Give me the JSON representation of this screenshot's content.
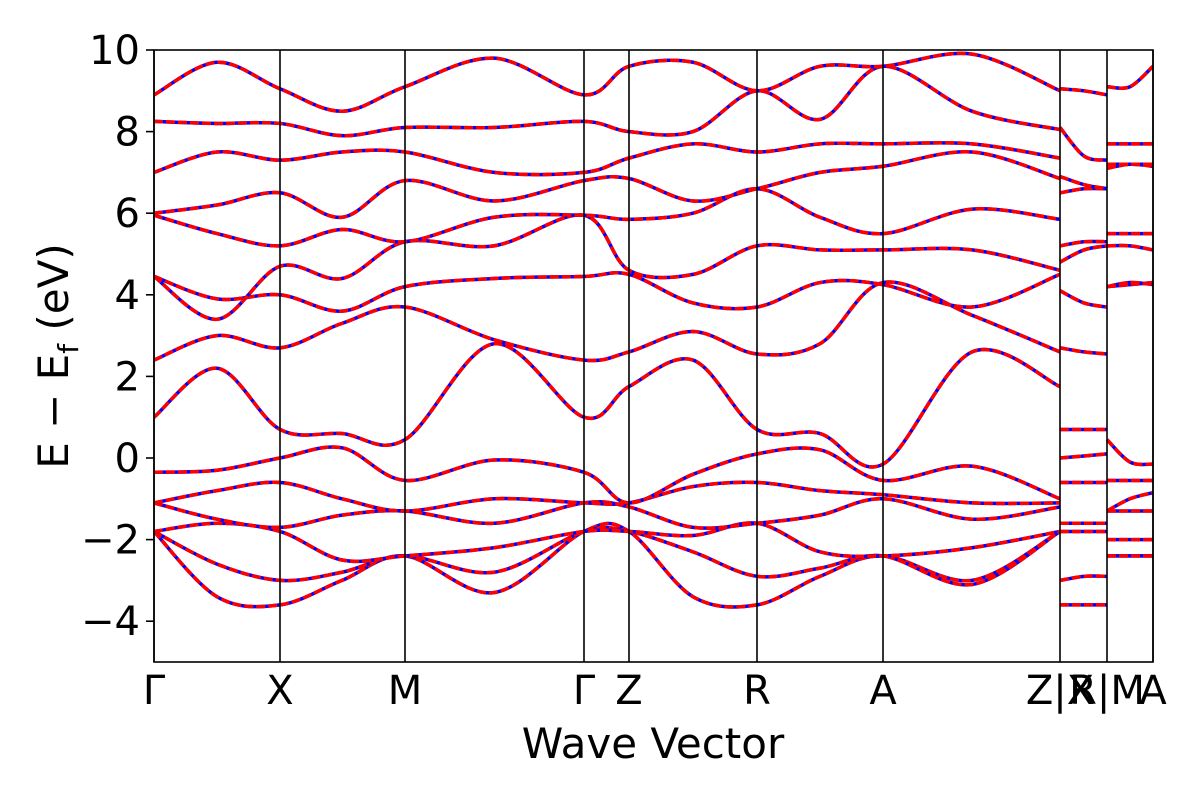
{
  "chart_data": {
    "type": "line",
    "xlabel": "Wave Vector",
    "ylabel": [
      "E − E",
      "f",
      " (eV)"
    ],
    "xlim": [
      0,
      9.99
    ],
    "ylim": [
      -5,
      10
    ],
    "xticks": [
      {
        "value": 0,
        "label": "Γ"
      },
      {
        "value": 1.26,
        "label": "X"
      },
      {
        "value": 2.51,
        "label": "M"
      },
      {
        "value": 4.3,
        "label": "Γ"
      },
      {
        "value": 4.75,
        "label": "Z"
      },
      {
        "value": 6.03,
        "label": "R"
      },
      {
        "value": 7.29,
        "label": "A"
      },
      {
        "value": 9.06,
        "label": "Z|X"
      },
      {
        "value": 9.53,
        "label": "R|M"
      },
      {
        "value": 9.99,
        "label": "A"
      }
    ],
    "yticks": [
      {
        "value": -4,
        "label": "−4"
      },
      {
        "value": -2,
        "label": "−2"
      },
      0,
      2,
      4,
      6,
      8,
      10
    ],
    "line_colors": [
      "#0000ff",
      "#ff0000"
    ],
    "x": [
      0,
      0.63,
      1.26,
      1.88,
      2.51,
      3.4,
      4.3,
      4.75,
      5.39,
      6.03,
      6.66,
      7.29,
      8.18,
      9.06,
      9.06,
      9.06,
      9.3,
      9.53,
      9.53,
      9.53,
      9.76,
      9.99
    ],
    "series": [
      {
        "values": [
          -1.8,
          -3.4,
          -3.6,
          -3.0,
          -2.4,
          -3.3,
          -1.8,
          -1.8,
          -3.4,
          -3.6,
          -2.9,
          -2.4,
          -3.0,
          -1.8,
          null,
          -3.6,
          -3.6,
          -3.6,
          null,
          -2.4,
          -2.4,
          -2.4
        ]
      },
      {
        "values": [
          -1.8,
          -2.6,
          -3.0,
          -2.8,
          -2.4,
          -2.8,
          -1.8,
          -1.8,
          -2.3,
          -2.9,
          -2.7,
          -2.4,
          -3.1,
          -1.8,
          null,
          -3.0,
          -2.9,
          -2.9,
          null,
          -2.4,
          -2.4,
          -2.4
        ]
      },
      {
        "values": [
          -1.8,
          -1.6,
          -1.8,
          -2.5,
          -2.4,
          -2.2,
          -1.8,
          -1.8,
          -1.9,
          -1.6,
          -2.3,
          -2.4,
          -2.2,
          -1.8,
          null,
          -1.8,
          -1.8,
          -1.8,
          null,
          -2.0,
          -2.0,
          -2.0
        ]
      },
      {
        "values": [
          -1.1,
          -1.5,
          -1.7,
          -1.4,
          -1.3,
          -1.6,
          -1.1,
          -1.2,
          -1.7,
          -1.6,
          -1.4,
          -1.0,
          -1.5,
          -1.2,
          null,
          -1.6,
          -1.6,
          -1.6,
          null,
          -1.3,
          -1.3,
          -1.3
        ]
      },
      {
        "values": [
          -1.1,
          -0.8,
          -0.6,
          -1.0,
          -1.3,
          -1.0,
          -1.1,
          -1.1,
          -0.7,
          -0.6,
          -0.8,
          -0.9,
          -1.1,
          -1.1,
          null,
          -0.6,
          -0.6,
          -0.6,
          null,
          -1.3,
          -1.0,
          -0.85
        ]
      },
      {
        "values": [
          -0.35,
          -0.3,
          0.0,
          0.25,
          -0.55,
          -0.05,
          -0.35,
          -1.1,
          -0.4,
          0.1,
          0.2,
          -0.55,
          -0.2,
          -1.0,
          null,
          0.0,
          0.05,
          0.1,
          null,
          -0.55,
          -0.55,
          -0.55
        ]
      },
      {
        "values": [
          1.0,
          2.2,
          0.7,
          0.6,
          0.45,
          2.8,
          1.0,
          1.75,
          2.4,
          0.7,
          0.6,
          -0.15,
          2.6,
          1.75,
          null,
          0.7,
          0.7,
          0.7,
          null,
          0.45,
          -0.1,
          -0.15
        ]
      },
      {
        "values": [
          2.4,
          3.0,
          2.7,
          3.3,
          3.7,
          2.9,
          2.4,
          2.6,
          3.1,
          2.55,
          2.8,
          4.3,
          3.5,
          2.6,
          null,
          2.7,
          2.6,
          2.55,
          null,
          4.2,
          4.25,
          4.3
        ]
      },
      {
        "values": [
          4.45,
          3.9,
          4.0,
          3.6,
          4.2,
          4.4,
          4.45,
          4.5,
          3.8,
          3.7,
          4.3,
          4.25,
          3.7,
          4.5,
          null,
          4.1,
          3.8,
          3.7,
          null,
          4.2,
          4.3,
          4.25
        ]
      },
      {
        "values": [
          4.45,
          3.4,
          4.7,
          4.4,
          5.3,
          5.2,
          5.95,
          4.6,
          4.5,
          5.2,
          5.1,
          5.1,
          5.1,
          4.6,
          null,
          4.8,
          5.1,
          5.2,
          null,
          5.2,
          5.2,
          5.1
        ]
      },
      {
        "values": [
          5.95,
          5.5,
          5.2,
          5.6,
          5.3,
          5.9,
          5.95,
          5.85,
          6.0,
          6.6,
          5.9,
          5.5,
          6.1,
          5.85,
          null,
          5.2,
          5.3,
          5.3,
          null,
          5.5,
          5.5,
          5.5
        ]
      },
      {
        "values": [
          6.0,
          6.2,
          6.5,
          5.9,
          6.8,
          6.3,
          6.8,
          6.85,
          6.3,
          6.6,
          7.0,
          7.15,
          7.5,
          6.85,
          null,
          6.5,
          6.6,
          6.6,
          null,
          7.1,
          7.2,
          7.15
        ]
      },
      {
        "values": [
          7.0,
          7.5,
          7.3,
          7.5,
          7.5,
          7.0,
          7.0,
          7.35,
          7.7,
          7.5,
          7.7,
          7.7,
          7.7,
          7.35,
          null,
          6.9,
          6.7,
          6.6,
          null,
          7.2,
          7.2,
          7.2
        ]
      },
      {
        "values": [
          8.25,
          8.2,
          8.2,
          7.9,
          8.1,
          8.1,
          8.25,
          8.0,
          8.0,
          9.0,
          8.3,
          9.6,
          8.5,
          8.05,
          null,
          8.1,
          7.4,
          7.3,
          null,
          7.7,
          7.7,
          7.7
        ]
      },
      {
        "values": [
          8.9,
          9.7,
          9.05,
          8.5,
          9.1,
          9.8,
          8.9,
          9.6,
          9.7,
          9.0,
          9.6,
          9.6,
          9.9,
          9.0,
          null,
          9.05,
          9.0,
          8.9,
          null,
          9.1,
          9.1,
          9.6
        ]
      }
    ]
  }
}
